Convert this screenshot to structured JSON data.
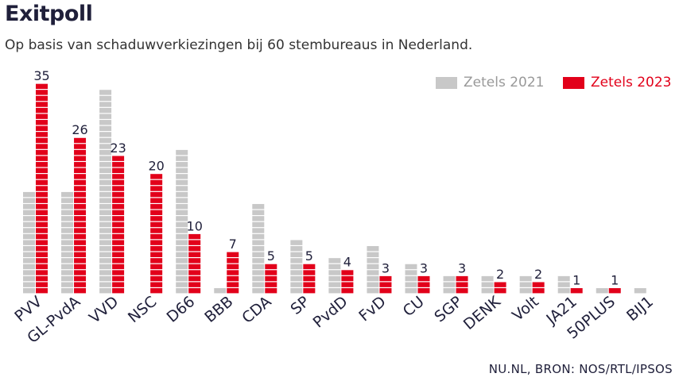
{
  "header": {
    "title": "Exitpoll",
    "subtitle": "Op basis van schaduwverkiezingen bij 60 stembureaus in Nederland."
  },
  "legend": {
    "items": [
      {
        "label": "Zetels 2021",
        "color": "#c8c8c8"
      },
      {
        "label": "Zetels 2023",
        "color": "#e2001a"
      }
    ]
  },
  "source": "NU.NL, BRON: NOS/RTL/IPSOS",
  "chart_data": {
    "type": "bar",
    "categories": [
      "PVV",
      "GL-PvdA",
      "VVD",
      "NSC",
      "D66",
      "BBB",
      "CDA",
      "SP",
      "PvdD",
      "FvD",
      "CU",
      "SGP",
      "DENK",
      "Volt",
      "JA21",
      "50PLUS",
      "BIJ1"
    ],
    "series": [
      {
        "name": "Zetels 2021",
        "color": "#c8c8c8",
        "values": [
          17,
          17,
          34,
          0,
          24,
          1,
          15,
          9,
          6,
          8,
          5,
          3,
          3,
          3,
          3,
          1,
          1
        ]
      },
      {
        "name": "Zetels 2023",
        "color": "#e2001a",
        "values": [
          35,
          26,
          23,
          20,
          10,
          7,
          5,
          5,
          4,
          3,
          3,
          3,
          2,
          2,
          1,
          1,
          0
        ]
      }
    ],
    "data_labels": [
      "35",
      "26",
      "23",
      "20",
      "10",
      "7",
      "5",
      "5",
      "4",
      "3",
      "3",
      "3",
      "2",
      "2",
      "1",
      "1",
      ""
    ],
    "ylim": [
      0,
      35
    ],
    "grid": false,
    "legend_position": "top-right"
  }
}
